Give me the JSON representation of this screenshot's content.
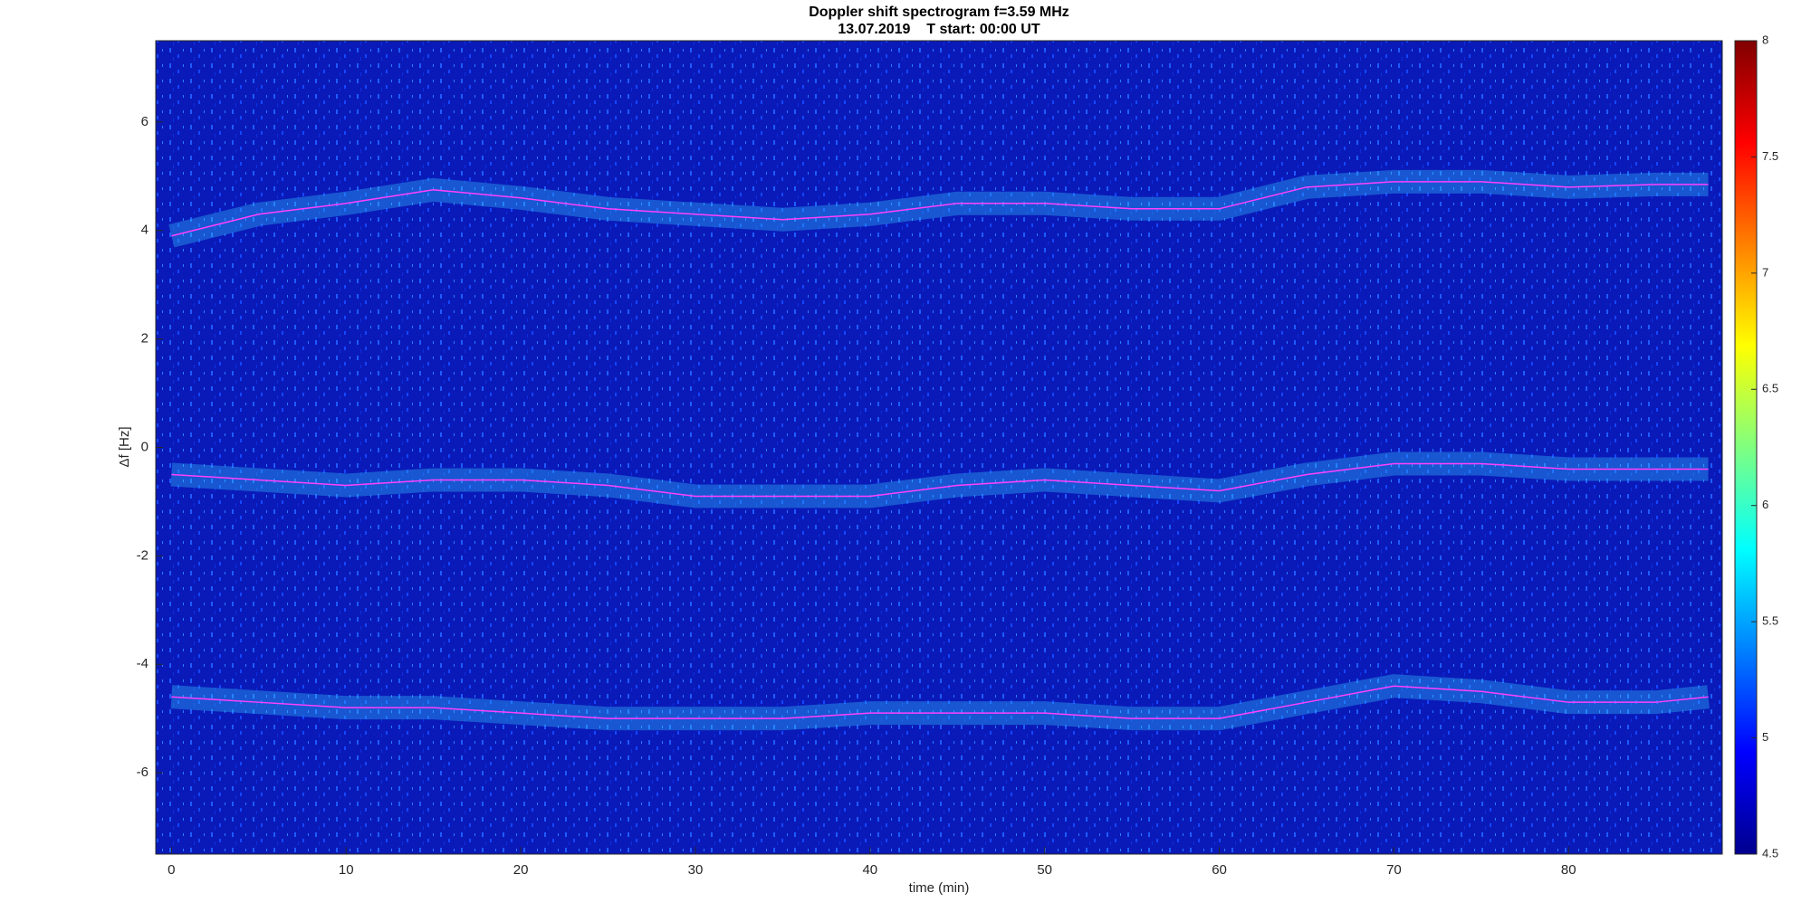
{
  "chart_data": {
    "type": "spectrogram",
    "title": "Doppler shift spectrogram f=3.59 MHz",
    "subtitle": "13.07.2019    T start: 00:00 UT",
    "x_label": "time (min)",
    "y_label": "Δf [Hz]",
    "xlim": [
      -0.9,
      88.8
    ],
    "ylim": [
      -7.5,
      7.5
    ],
    "xticks": [
      0,
      10,
      20,
      30,
      40,
      50,
      60,
      70,
      80
    ],
    "yticks": [
      -6,
      -4,
      -2,
      0,
      2,
      4,
      6
    ],
    "x": [
      0,
      5,
      10,
      15,
      20,
      25,
      30,
      35,
      40,
      45,
      50,
      55,
      60,
      65,
      70,
      75,
      80,
      85,
      88
    ],
    "series": [
      {
        "color": "#ff40ff",
        "values": [
          3.9,
          4.3,
          4.5,
          4.75,
          4.6,
          4.4,
          4.3,
          4.2,
          4.3,
          4.5,
          4.5,
          4.4,
          4.4,
          4.8,
          4.9,
          4.9,
          4.8,
          4.85,
          4.85
        ]
      },
      {
        "color": "#ff40ff",
        "values": [
          -0.5,
          -0.6,
          -0.7,
          -0.6,
          -0.6,
          -0.7,
          -0.9,
          -0.9,
          -0.9,
          -0.7,
          -0.6,
          -0.7,
          -0.8,
          -0.5,
          -0.3,
          -0.3,
          -0.4,
          -0.4,
          -0.4
        ]
      },
      {
        "color": "#ff40ff",
        "values": [
          -4.6,
          -4.7,
          -4.8,
          -4.8,
          -4.9,
          -5.0,
          -5.0,
          -5.0,
          -4.9,
          -4.9,
          -4.9,
          -5.0,
          -5.0,
          -4.7,
          -4.4,
          -4.5,
          -4.7,
          -4.7,
          -4.6
        ]
      }
    ],
    "colorbar": {
      "lim": [
        4.5,
        8
      ],
      "ticks": [
        4.5,
        5,
        5.5,
        6,
        6.5,
        7,
        7.5,
        8
      ]
    }
  }
}
